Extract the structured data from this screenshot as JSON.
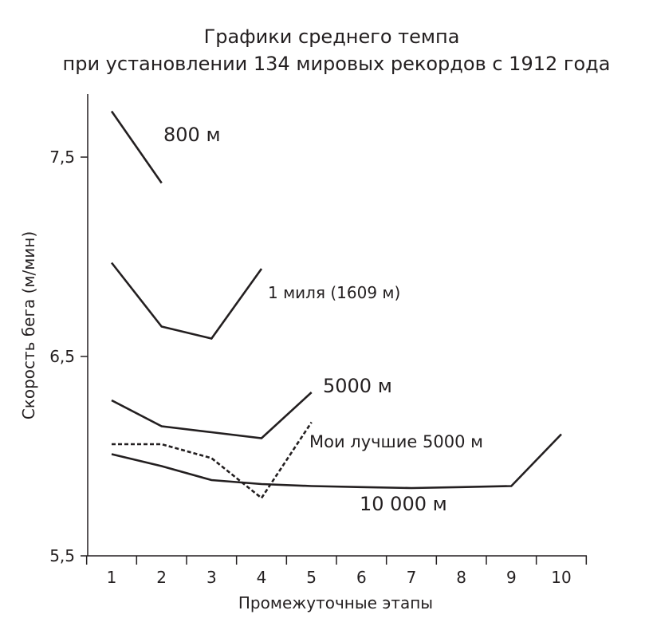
{
  "chart_data": {
    "type": "line",
    "title": "Графики среднего темпа",
    "subtitle": "при установлении 134 мировых рекордов с 1912 года",
    "xlabel": "Промежуточные этапы",
    "ylabel": "Скорость бега (м/мин)",
    "xlim": [
      1,
      10
    ],
    "ylim": [
      5.5,
      7.8
    ],
    "x_ticks": [
      1,
      2,
      3,
      4,
      5,
      6,
      7,
      8,
      9,
      10
    ],
    "x_tick_labels": [
      "1",
      "2",
      "3",
      "4",
      "5",
      "6",
      "7",
      "8",
      "9",
      "10"
    ],
    "y_ticks": [
      5.5,
      6.5,
      7.5
    ],
    "y_tick_labels": [
      "5,5",
      "6,5",
      "7,5"
    ],
    "grid": false,
    "legend": "none",
    "series": [
      {
        "name": "800 м",
        "style": "solid",
        "color": "#231f20",
        "x": [
          1,
          2
        ],
        "y": [
          7.73,
          7.37
        ]
      },
      {
        "name": "1 миля (1609 м)",
        "style": "solid",
        "color": "#231f20",
        "x": [
          1,
          2,
          3,
          4
        ],
        "y": [
          6.97,
          6.65,
          6.59,
          6.94
        ]
      },
      {
        "name": "5000 м",
        "style": "solid",
        "color": "#231f20",
        "x": [
          1,
          2,
          3,
          4,
          5
        ],
        "y": [
          6.28,
          6.15,
          6.12,
          6.09,
          6.32
        ]
      },
      {
        "name": "Мои лучшие 5000 м",
        "style": "dashed",
        "color": "#231f20",
        "x": [
          1,
          2,
          3,
          4,
          5
        ],
        "y": [
          6.06,
          6.06,
          5.99,
          5.79,
          6.17
        ]
      },
      {
        "name": "10 000 м",
        "style": "solid",
        "color": "#231f20",
        "x": [
          1,
          2,
          3,
          4,
          5,
          6,
          7,
          8,
          9,
          10
        ],
        "y": [
          6.01,
          5.95,
          5.88,
          5.86,
          5.85,
          5.845,
          5.84,
          5.845,
          5.85,
          6.11
        ]
      }
    ]
  }
}
